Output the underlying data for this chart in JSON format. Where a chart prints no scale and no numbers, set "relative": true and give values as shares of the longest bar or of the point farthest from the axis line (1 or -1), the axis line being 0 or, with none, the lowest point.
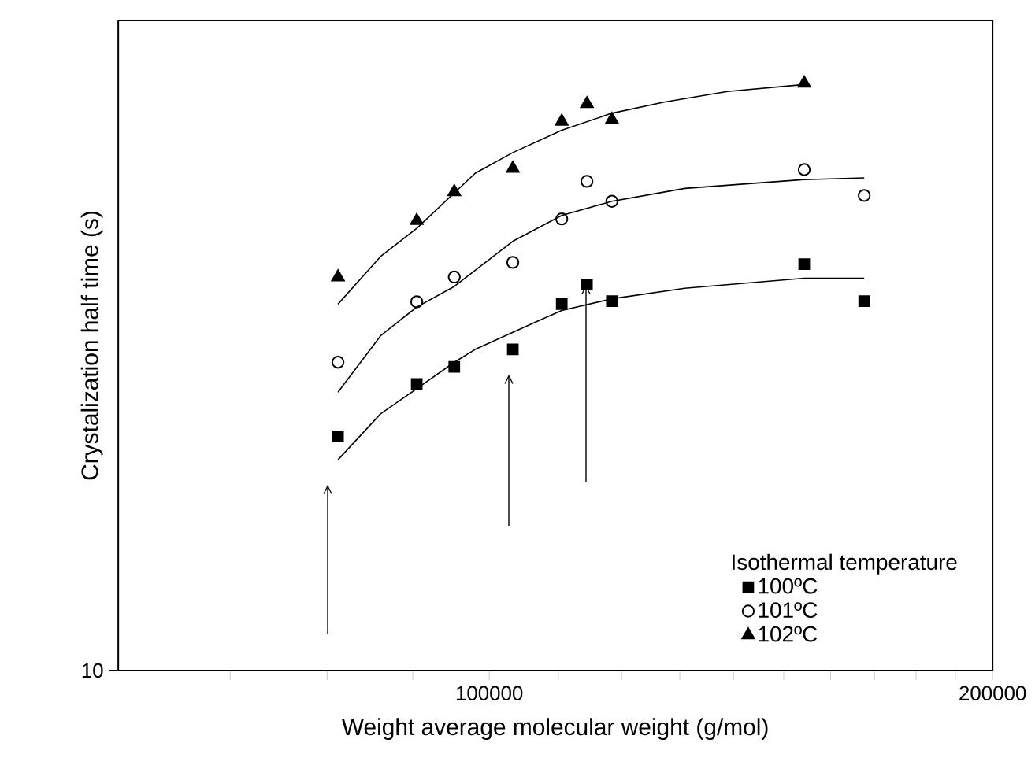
{
  "chart_data": {
    "type": "scatter",
    "xlabel": "Weight average molecular weight (g/mol)",
    "ylabel": "Crystalization half time (s)",
    "legend_title": "Isothermal temperature",
    "legend": "bottom right",
    "log": "x",
    "relative": true,
    "annotations": [
      "10"
    ],
    "xlim": [
      60000,
      200000
    ],
    "xticks": [
      {
        "value": 70000,
        "label": null
      },
      {
        "value": 80000,
        "label": null
      },
      {
        "value": 90000,
        "label": null
      },
      100000,
      {
        "value": 110000,
        "label": null
      },
      {
        "value": 120000,
        "label": null
      },
      {
        "value": 130000,
        "label": null
      },
      {
        "value": 140000,
        "label": null
      },
      {
        "value": 150000,
        "label": null
      },
      {
        "value": 160000,
        "label": null
      },
      {
        "value": 170000,
        "label": null
      },
      {
        "value": 180000,
        "label": null
      },
      {
        "value": 190000,
        "label": null
      },
      200000
    ],
    "series": [
      {
        "name": "100ºC",
        "color": "#000000",
        "marker": "square",
        "x": [
          81200,
          90500,
          95300,
          103300,
          110500,
          114400,
          118400,
          154300,
          167600
        ],
        "values": [
          0.399,
          0.488,
          0.517,
          0.547,
          0.624,
          0.657,
          0.629,
          0.692,
          0.629
        ]
      },
      {
        "name": "101ºC",
        "color": "#000000",
        "marker": "circle",
        "x": [
          81200,
          90500,
          95300,
          103300,
          110500,
          114400,
          118400,
          154300,
          167600
        ],
        "values": [
          0.525,
          0.628,
          0.67,
          0.695,
          0.769,
          0.833,
          0.799,
          0.853,
          0.809
        ]
      },
      {
        "name": "102ºC",
        "color": "#000000",
        "marker": "triangle",
        "x": [
          81200,
          90500,
          95300,
          103300,
          110500,
          114400,
          118400,
          154300
        ],
        "values": [
          0.67,
          0.766,
          0.815,
          0.855,
          0.935,
          0.965,
          0.938,
          1
        ]
      },
      {
        "type": "line",
        "color": "#000000",
        "marker": "none",
        "x": [
          81200,
          86100,
          90500,
          95300,
          98100,
          106900,
          110500,
          118400,
          130900,
          154300,
          167600
        ],
        "values": [
          0.359,
          0.437,
          0.48,
          0.525,
          0.547,
          0.595,
          0.613,
          0.633,
          0.651,
          0.668,
          0.668
        ]
      },
      {
        "type": "line",
        "color": "#000000",
        "marker": "none",
        "x": [
          81200,
          86100,
          90500,
          95300,
          103300,
          110500,
          118400,
          130900,
          154300,
          167600
        ],
        "values": [
          0.474,
          0.57,
          0.619,
          0.654,
          0.731,
          0.775,
          0.799,
          0.821,
          0.836,
          0.839
        ]
      },
      {
        "type": "line",
        "color": "#000000",
        "marker": "none",
        "x": [
          81200,
          86100,
          90500,
          98100,
          103300,
          110500,
          118400,
          127200,
          138800,
          154300
        ],
        "values": [
          0.624,
          0.705,
          0.753,
          0.847,
          0.882,
          0.92,
          0.949,
          0.968,
          0.986,
          0.998
        ]
      }
    ]
  }
}
